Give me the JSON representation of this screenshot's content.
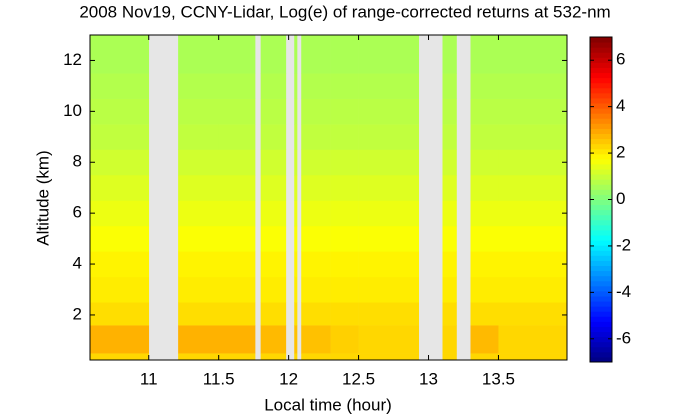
{
  "chart_data": {
    "type": "heatmap",
    "title": "2008 Nov19, CCNY-Lidar, Log(e) of range-corrected returns at 532-nm",
    "x_label": "Local time (hour)",
    "y_label": "Altitude (km)",
    "xlim": [
      10.58,
      13.99
    ],
    "xticks": [
      11,
      11.5,
      12,
      12.5,
      13,
      13.5
    ],
    "ylim": [
      0.23,
      13
    ],
    "yticks": [
      2,
      4,
      6,
      8,
      10,
      12
    ],
    "clim": [
      -7,
      7
    ],
    "cticks": [
      -6,
      -4,
      -2,
      0,
      2,
      4,
      6
    ],
    "colormap": "jet",
    "time_bins": [
      10.58,
      11.0,
      11.21,
      11.5,
      11.76,
      11.8,
      11.98,
      12.04,
      12.06,
      12.09,
      12.3,
      12.5,
      12.93,
      13.1,
      13.2,
      13.3,
      13.5,
      13.99
    ],
    "altitude_bins": [
      0.23,
      0.5,
      1.6,
      2.5,
      3.5,
      4.5,
      5.5,
      6.5,
      7.5,
      8.5,
      9.5,
      10.5,
      11.5,
      13
    ],
    "values": [
      [
        2.3,
        null,
        2.3,
        2.3,
        null,
        2.3,
        null,
        2.3,
        null,
        2.3,
        2.3,
        2.3,
        null,
        2.3,
        null,
        2.3,
        2.3
      ],
      [
        2.8,
        null,
        2.8,
        2.8,
        null,
        2.7,
        null,
        2.6,
        null,
        2.6,
        2.4,
        2.3,
        null,
        2.3,
        null,
        2.7,
        2.3
      ],
      [
        2.2,
        null,
        2.2,
        2.2,
        null,
        2.2,
        null,
        2.2,
        null,
        2.2,
        2.2,
        2.2,
        null,
        2.2,
        null,
        2.2,
        2.2
      ],
      [
        2.0,
        null,
        2.0,
        2.0,
        null,
        2.0,
        null,
        2.0,
        null,
        2.0,
        2.0,
        2.0,
        null,
        2.0,
        null,
        2.0,
        2.0
      ],
      [
        1.9,
        null,
        1.9,
        1.9,
        null,
        1.9,
        null,
        1.9,
        null,
        1.9,
        1.9,
        1.9,
        null,
        1.9,
        null,
        1.9,
        1.9
      ],
      [
        1.7,
        null,
        1.7,
        1.7,
        null,
        1.7,
        null,
        1.7,
        null,
        1.7,
        1.7,
        1.7,
        null,
        1.7,
        null,
        1.7,
        1.7
      ],
      [
        1.5,
        null,
        1.5,
        1.5,
        null,
        1.5,
        null,
        1.5,
        null,
        1.5,
        1.5,
        1.5,
        null,
        1.5,
        null,
        1.5,
        1.5
      ],
      [
        1.3,
        null,
        1.3,
        1.3,
        null,
        1.3,
        null,
        1.3,
        null,
        1.3,
        1.3,
        1.3,
        null,
        1.3,
        null,
        1.3,
        1.3
      ],
      [
        1.1,
        null,
        1.1,
        1.1,
        null,
        1.1,
        null,
        1.1,
        null,
        1.1,
        1.1,
        1.1,
        null,
        1.1,
        null,
        1.1,
        1.1
      ],
      [
        0.9,
        null,
        0.9,
        0.9,
        null,
        0.9,
        null,
        0.9,
        null,
        0.9,
        0.9,
        0.9,
        null,
        0.9,
        null,
        0.9,
        0.9
      ],
      [
        0.8,
        null,
        0.8,
        0.8,
        null,
        0.8,
        null,
        0.8,
        null,
        0.8,
        0.8,
        0.8,
        null,
        0.8,
        null,
        0.8,
        0.8
      ],
      [
        0.7,
        null,
        0.7,
        0.7,
        null,
        0.7,
        null,
        0.7,
        null,
        0.7,
        0.7,
        0.7,
        null,
        0.7,
        null,
        0.7,
        0.7
      ],
      [
        0.6,
        null,
        0.6,
        0.6,
        null,
        0.6,
        null,
        0.6,
        null,
        0.6,
        0.6,
        0.6,
        null,
        0.6,
        null,
        0.6,
        0.6
      ]
    ]
  }
}
